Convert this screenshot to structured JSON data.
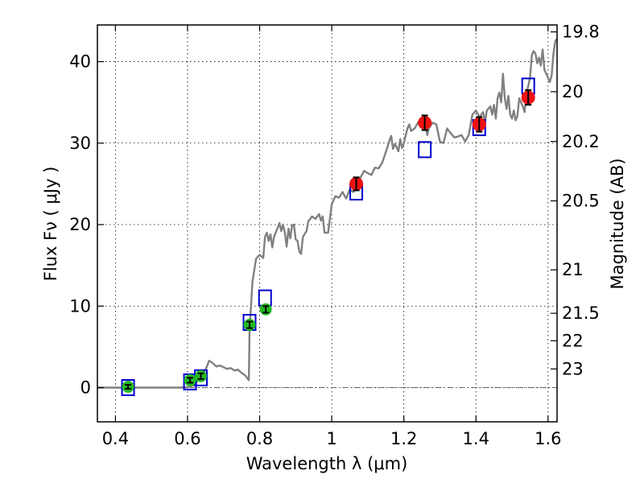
{
  "chart_data": {
    "type": "scatter",
    "title": "",
    "xlabel": "Wavelength  λ (μm)",
    "ylabel": "Flux  Fν  ( μJy )",
    "y2label": "Magnitude (AB)",
    "xlim": [
      0.35,
      1.625
    ],
    "ylim": [
      -4.2,
      44.5
    ],
    "grid": true,
    "x_ticks": [
      0.4,
      0.6,
      0.8,
      1.0,
      1.2,
      1.4,
      1.6
    ],
    "x_tick_labels": [
      "0.4",
      "0.6",
      "0.8",
      "1",
      "1.2",
      "1.4",
      "1.6"
    ],
    "y_ticks": [
      0,
      10,
      20,
      30,
      40
    ],
    "y_tick_labels": [
      "0",
      "10",
      "20",
      "30",
      "40"
    ],
    "y2_ticks": [
      {
        "label": "19.8",
        "flux": 43.65
      },
      {
        "label": "20",
        "flux": 36.31
      },
      {
        "label": "20.2",
        "flux": 30.2
      },
      {
        "label": "20.5",
        "flux": 22.91
      },
      {
        "label": "21",
        "flux": 14.45
      },
      {
        "label": "21.5",
        "flux": 9.12
      },
      {
        "label": "22",
        "flux": 5.75
      },
      {
        "label": "23",
        "flux": 2.29
      }
    ],
    "series": [
      {
        "name": "",
        "kind": "line",
        "color": "#808080",
        "points": [
          [
            0.35,
            0.0
          ],
          [
            0.58,
            0.0
          ],
          [
            0.6,
            0.05
          ],
          [
            0.62,
            0.3
          ],
          [
            0.63,
            1.0
          ],
          [
            0.64,
            1.3
          ],
          [
            0.65,
            2.2
          ],
          [
            0.66,
            3.3
          ],
          [
            0.67,
            3.0
          ],
          [
            0.68,
            2.6
          ],
          [
            0.69,
            2.7
          ],
          [
            0.7,
            2.5
          ],
          [
            0.71,
            2.3
          ],
          [
            0.72,
            2.4
          ],
          [
            0.73,
            2.1
          ],
          [
            0.74,
            2.2
          ],
          [
            0.75,
            1.8
          ],
          [
            0.76,
            1.5
          ],
          [
            0.77,
            0.9
          ],
          [
            0.772,
            7.0
          ],
          [
            0.78,
            13.0
          ],
          [
            0.79,
            15.8
          ],
          [
            0.8,
            16.3
          ],
          [
            0.81,
            15.9
          ],
          [
            0.815,
            18.5
          ],
          [
            0.82,
            19.0
          ],
          [
            0.825,
            18.0
          ],
          [
            0.83,
            18.8
          ],
          [
            0.835,
            17.2
          ],
          [
            0.84,
            18.5
          ],
          [
            0.85,
            19.6
          ],
          [
            0.855,
            20.2
          ],
          [
            0.86,
            19.2
          ],
          [
            0.865,
            20.0
          ],
          [
            0.87,
            19.0
          ],
          [
            0.875,
            17.3
          ],
          [
            0.88,
            19.5
          ],
          [
            0.885,
            18.3
          ],
          [
            0.89,
            19.9
          ],
          [
            0.895,
            20.0
          ],
          [
            0.9,
            18.2
          ],
          [
            0.905,
            18.0
          ],
          [
            0.91,
            16.7
          ],
          [
            0.915,
            16.4
          ],
          [
            0.92,
            18.5
          ],
          [
            0.93,
            19.2
          ],
          [
            0.935,
            20.4
          ],
          [
            0.945,
            21.0
          ],
          [
            0.955,
            20.7
          ],
          [
            0.965,
            21.3
          ],
          [
            0.97,
            20.5
          ],
          [
            0.975,
            21.0
          ],
          [
            0.98,
            19.0
          ],
          [
            0.99,
            19.0
          ],
          [
            1.0,
            22.5
          ],
          [
            1.01,
            23.5
          ],
          [
            1.02,
            23.3
          ],
          [
            1.03,
            24.0
          ],
          [
            1.04,
            23.2
          ],
          [
            1.05,
            24.3
          ],
          [
            1.06,
            24.0
          ],
          [
            1.07,
            24.6
          ],
          [
            1.08,
            25.8
          ],
          [
            1.09,
            26.6
          ],
          [
            1.1,
            26.3
          ],
          [
            1.11,
            26.1
          ],
          [
            1.12,
            27.0
          ],
          [
            1.13,
            26.9
          ],
          [
            1.14,
            27.6
          ],
          [
            1.15,
            28.9
          ],
          [
            1.16,
            30.3
          ],
          [
            1.165,
            30.9
          ],
          [
            1.17,
            29.3
          ],
          [
            1.175,
            29.9
          ],
          [
            1.18,
            29.5
          ],
          [
            1.185,
            29.0
          ],
          [
            1.19,
            30.5
          ],
          [
            1.195,
            29.4
          ],
          [
            1.2,
            30.0
          ],
          [
            1.21,
            31.8
          ],
          [
            1.215,
            32.3
          ],
          [
            1.22,
            31.5
          ],
          [
            1.23,
            31.8
          ],
          [
            1.24,
            32.6
          ],
          [
            1.25,
            32.8
          ],
          [
            1.26,
            32.0
          ],
          [
            1.265,
            31.0
          ],
          [
            1.27,
            31.9
          ],
          [
            1.28,
            32.5
          ],
          [
            1.29,
            32.3
          ],
          [
            1.3,
            30.2
          ],
          [
            1.31,
            30.0
          ],
          [
            1.32,
            31.8
          ],
          [
            1.33,
            31.2
          ],
          [
            1.34,
            30.7
          ],
          [
            1.35,
            30.8
          ],
          [
            1.36,
            31.0
          ],
          [
            1.37,
            30.2
          ],
          [
            1.38,
            31.0
          ],
          [
            1.39,
            33.5
          ],
          [
            1.4,
            34.0
          ],
          [
            1.41,
            33.2
          ],
          [
            1.42,
            33.8
          ],
          [
            1.425,
            32.5
          ],
          [
            1.43,
            34.0
          ],
          [
            1.44,
            34.5
          ],
          [
            1.445,
            33.5
          ],
          [
            1.45,
            34.7
          ],
          [
            1.455,
            33.0
          ],
          [
            1.46,
            35.5
          ],
          [
            1.465,
            36.2
          ],
          [
            1.47,
            35.0
          ],
          [
            1.475,
            38.5
          ],
          [
            1.48,
            35.5
          ],
          [
            1.485,
            34.2
          ],
          [
            1.49,
            35.8
          ],
          [
            1.495,
            33.5
          ],
          [
            1.5,
            33.0
          ],
          [
            1.505,
            34.0
          ],
          [
            1.51,
            32.8
          ],
          [
            1.515,
            33.3
          ],
          [
            1.52,
            35.5
          ],
          [
            1.53,
            34.5
          ],
          [
            1.535,
            33.8
          ],
          [
            1.54,
            36.0
          ],
          [
            1.55,
            38.0
          ],
          [
            1.555,
            40.8
          ],
          [
            1.56,
            41.3
          ],
          [
            1.565,
            41.0
          ],
          [
            1.57,
            39.8
          ],
          [
            1.575,
            40.5
          ],
          [
            1.58,
            39.5
          ],
          [
            1.585,
            41.5
          ],
          [
            1.59,
            39.0
          ],
          [
            1.595,
            38.5
          ],
          [
            1.6,
            38.0
          ],
          [
            1.605,
            37.5
          ],
          [
            1.61,
            38.3
          ],
          [
            1.615,
            41.0
          ],
          [
            1.62,
            42.5
          ],
          [
            1.625,
            42.8
          ]
        ]
      },
      {
        "name": "",
        "kind": "open-square",
        "color": "#0000d0",
        "points": [
          [
            0.435,
            0.0
          ],
          [
            0.607,
            0.7
          ],
          [
            0.637,
            1.2
          ],
          [
            0.772,
            8.0
          ],
          [
            0.815,
            11.0
          ],
          [
            1.068,
            24.0
          ],
          [
            1.258,
            29.2
          ],
          [
            1.409,
            31.9
          ],
          [
            1.545,
            37.0
          ]
        ]
      },
      {
        "name": "",
        "kind": "point-errorbar",
        "color": "#22bb22",
        "points": [
          {
            "x": 0.435,
            "y": 0.1,
            "err": 0.25
          },
          {
            "x": 0.607,
            "y": 0.9,
            "err": 0.3
          },
          {
            "x": 0.637,
            "y": 1.4,
            "err": 0.35
          },
          {
            "x": 0.772,
            "y": 7.7,
            "err": 0.4
          },
          {
            "x": 0.817,
            "y": 9.6,
            "err": 0.4
          }
        ]
      },
      {
        "name": "",
        "kind": "point-errorbar",
        "color": "#ee1111",
        "points": [
          {
            "x": 1.068,
            "y": 25.0,
            "err": 0.8
          },
          {
            "x": 1.258,
            "y": 32.5,
            "err": 0.9
          },
          {
            "x": 1.409,
            "y": 32.3,
            "err": 0.9
          },
          {
            "x": 1.545,
            "y": 35.6,
            "err": 0.9
          }
        ]
      }
    ]
  }
}
